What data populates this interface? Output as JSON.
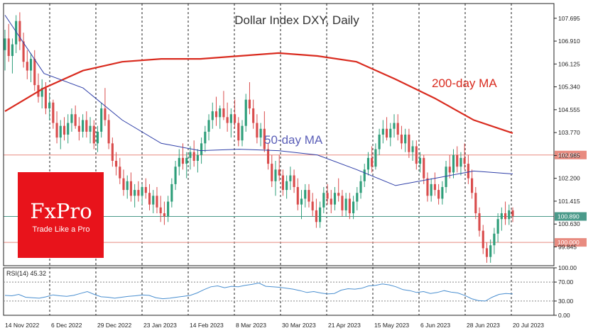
{
  "chart_data": {
    "type": "candlestick",
    "title": "Dollar Index DXY, Daily",
    "main_panel": {
      "y_ticks": [
        "107.695",
        "106.910",
        "106.125",
        "105.340",
        "104.555",
        "103.770",
        "102.985",
        "102.200",
        "101.415",
        "100.630",
        "99.845"
      ],
      "ylim": [
        99.2,
        108.2
      ],
      "x_labels": [
        "14 Nov 2022",
        "6 Dec 2022",
        "29 Dec 2022",
        "23 Jan 2023",
        "14 Feb 2023",
        "8 Mar 2023",
        "30 Mar 2023",
        "21 Apr 2023",
        "15 May 2023",
        "6 Jun 2023",
        "28 Jun 2023",
        "20 Jul 2023"
      ],
      "candles": [
        {
          "o": 106.6,
          "h": 107.3,
          "l": 105.9,
          "c": 107.0
        },
        {
          "o": 107.0,
          "h": 107.5,
          "l": 106.2,
          "c": 106.4
        },
        {
          "o": 106.4,
          "h": 107.0,
          "l": 105.8,
          "c": 106.8
        },
        {
          "o": 106.8,
          "h": 107.8,
          "l": 106.5,
          "c": 107.6
        },
        {
          "o": 107.6,
          "h": 107.9,
          "l": 106.6,
          "c": 106.9
        },
        {
          "o": 106.9,
          "h": 107.2,
          "l": 106.0,
          "c": 106.2
        },
        {
          "o": 106.2,
          "h": 106.6,
          "l": 105.6,
          "c": 105.9
        },
        {
          "o": 105.9,
          "h": 106.5,
          "l": 105.5,
          "c": 106.3
        },
        {
          "o": 106.3,
          "h": 106.6,
          "l": 105.2,
          "c": 105.4
        },
        {
          "o": 105.4,
          "h": 105.8,
          "l": 104.8,
          "c": 105.0
        },
        {
          "o": 105.0,
          "h": 105.6,
          "l": 104.6,
          "c": 105.3
        },
        {
          "o": 105.3,
          "h": 105.5,
          "l": 104.4,
          "c": 104.6
        },
        {
          "o": 104.6,
          "h": 105.1,
          "l": 104.2,
          "c": 104.8
        },
        {
          "o": 104.8,
          "h": 104.9,
          "l": 103.9,
          "c": 104.1
        },
        {
          "o": 104.1,
          "h": 104.5,
          "l": 103.4,
          "c": 103.6
        },
        {
          "o": 103.6,
          "h": 104.2,
          "l": 103.2,
          "c": 104.0
        },
        {
          "o": 104.0,
          "h": 104.3,
          "l": 103.5,
          "c": 103.7
        },
        {
          "o": 103.7,
          "h": 104.4,
          "l": 103.4,
          "c": 104.1
        },
        {
          "o": 104.1,
          "h": 104.6,
          "l": 103.8,
          "c": 104.4
        },
        {
          "o": 104.4,
          "h": 104.7,
          "l": 103.9,
          "c": 104.0
        },
        {
          "o": 104.0,
          "h": 104.3,
          "l": 103.5,
          "c": 103.8
        },
        {
          "o": 103.8,
          "h": 104.4,
          "l": 103.6,
          "c": 104.2
        },
        {
          "o": 104.2,
          "h": 104.5,
          "l": 103.6,
          "c": 103.8
        },
        {
          "o": 103.8,
          "h": 104.3,
          "l": 103.4,
          "c": 104.0
        },
        {
          "o": 104.0,
          "h": 104.2,
          "l": 103.2,
          "c": 103.4
        },
        {
          "o": 103.4,
          "h": 104.0,
          "l": 103.1,
          "c": 103.8
        },
        {
          "o": 103.8,
          "h": 104.8,
          "l": 103.6,
          "c": 104.6
        },
        {
          "o": 104.6,
          "h": 105.3,
          "l": 104.0,
          "c": 104.2
        },
        {
          "o": 104.2,
          "h": 104.4,
          "l": 103.2,
          "c": 103.4
        },
        {
          "o": 103.4,
          "h": 103.6,
          "l": 102.6,
          "c": 102.8
        },
        {
          "o": 102.8,
          "h": 103.1,
          "l": 102.3,
          "c": 102.6
        },
        {
          "o": 102.6,
          "h": 102.9,
          "l": 102.0,
          "c": 102.2
        },
        {
          "o": 102.2,
          "h": 102.5,
          "l": 101.6,
          "c": 101.8
        },
        {
          "o": 101.8,
          "h": 102.3,
          "l": 101.5,
          "c": 102.1
        },
        {
          "o": 102.1,
          "h": 102.4,
          "l": 101.4,
          "c": 101.6
        },
        {
          "o": 101.6,
          "h": 102.0,
          "l": 101.2,
          "c": 101.8
        },
        {
          "o": 101.8,
          "h": 102.1,
          "l": 101.4,
          "c": 101.6
        },
        {
          "o": 101.6,
          "h": 102.0,
          "l": 101.3,
          "c": 101.9
        },
        {
          "o": 101.9,
          "h": 102.2,
          "l": 101.5,
          "c": 101.7
        },
        {
          "o": 101.7,
          "h": 102.0,
          "l": 101.1,
          "c": 101.3
        },
        {
          "o": 101.3,
          "h": 101.8,
          "l": 101.0,
          "c": 101.6
        },
        {
          "o": 101.6,
          "h": 101.9,
          "l": 101.0,
          "c": 101.2
        },
        {
          "o": 101.2,
          "h": 101.6,
          "l": 100.7,
          "c": 101.0
        },
        {
          "o": 101.0,
          "h": 101.4,
          "l": 100.6,
          "c": 100.9
        },
        {
          "o": 100.9,
          "h": 101.6,
          "l": 100.7,
          "c": 101.4
        },
        {
          "o": 101.4,
          "h": 102.2,
          "l": 101.2,
          "c": 102.0
        },
        {
          "o": 102.0,
          "h": 102.8,
          "l": 101.8,
          "c": 102.6
        },
        {
          "o": 102.6,
          "h": 103.2,
          "l": 102.3,
          "c": 102.9
        },
        {
          "o": 102.9,
          "h": 103.4,
          "l": 102.5,
          "c": 102.7
        },
        {
          "o": 102.7,
          "h": 103.1,
          "l": 102.2,
          "c": 102.9
        },
        {
          "o": 102.9,
          "h": 103.3,
          "l": 102.5,
          "c": 103.1
        },
        {
          "o": 103.1,
          "h": 103.5,
          "l": 102.6,
          "c": 102.8
        },
        {
          "o": 102.8,
          "h": 103.2,
          "l": 102.4,
          "c": 103.0
        },
        {
          "o": 103.0,
          "h": 103.6,
          "l": 102.7,
          "c": 103.4
        },
        {
          "o": 103.4,
          "h": 104.0,
          "l": 103.1,
          "c": 103.8
        },
        {
          "o": 103.8,
          "h": 104.4,
          "l": 103.5,
          "c": 104.2
        },
        {
          "o": 104.2,
          "h": 104.8,
          "l": 103.9,
          "c": 104.5
        },
        {
          "o": 104.5,
          "h": 105.0,
          "l": 104.0,
          "c": 104.3
        },
        {
          "o": 104.3,
          "h": 104.7,
          "l": 103.9,
          "c": 104.6
        },
        {
          "o": 104.6,
          "h": 105.2,
          "l": 104.2,
          "c": 104.3
        },
        {
          "o": 104.3,
          "h": 104.8,
          "l": 103.8,
          "c": 104.1
        },
        {
          "o": 104.1,
          "h": 104.6,
          "l": 103.6,
          "c": 104.4
        },
        {
          "o": 104.4,
          "h": 104.9,
          "l": 103.9,
          "c": 104.1
        },
        {
          "o": 104.1,
          "h": 104.3,
          "l": 103.3,
          "c": 103.5
        },
        {
          "o": 103.5,
          "h": 104.2,
          "l": 103.3,
          "c": 104.0
        },
        {
          "o": 104.0,
          "h": 105.1,
          "l": 103.8,
          "c": 104.9
        },
        {
          "o": 104.9,
          "h": 105.5,
          "l": 104.4,
          "c": 104.6
        },
        {
          "o": 104.6,
          "h": 104.9,
          "l": 103.9,
          "c": 104.1
        },
        {
          "o": 104.1,
          "h": 104.4,
          "l": 103.4,
          "c": 103.6
        },
        {
          "o": 103.6,
          "h": 104.1,
          "l": 103.3,
          "c": 103.9
        },
        {
          "o": 103.9,
          "h": 104.5,
          "l": 103.1,
          "c": 103.2
        },
        {
          "o": 103.2,
          "h": 103.4,
          "l": 102.5,
          "c": 102.7
        },
        {
          "o": 102.7,
          "h": 103.0,
          "l": 101.9,
          "c": 102.1
        },
        {
          "o": 102.1,
          "h": 102.8,
          "l": 101.6,
          "c": 102.5
        },
        {
          "o": 102.5,
          "h": 103.0,
          "l": 102.1,
          "c": 102.3
        },
        {
          "o": 102.3,
          "h": 102.5,
          "l": 101.6,
          "c": 101.8
        },
        {
          "o": 101.8,
          "h": 102.3,
          "l": 101.5,
          "c": 102.1
        },
        {
          "o": 102.1,
          "h": 102.6,
          "l": 101.8,
          "c": 102.3
        },
        {
          "o": 102.3,
          "h": 102.5,
          "l": 101.7,
          "c": 101.9
        },
        {
          "o": 101.9,
          "h": 102.2,
          "l": 101.1,
          "c": 101.3
        },
        {
          "o": 101.3,
          "h": 101.8,
          "l": 100.8,
          "c": 101.5
        },
        {
          "o": 101.5,
          "h": 102.0,
          "l": 101.2,
          "c": 101.8
        },
        {
          "o": 101.8,
          "h": 102.0,
          "l": 101.2,
          "c": 101.4
        },
        {
          "o": 101.4,
          "h": 101.7,
          "l": 100.9,
          "c": 101.1
        },
        {
          "o": 101.1,
          "h": 101.5,
          "l": 100.5,
          "c": 100.7
        },
        {
          "o": 100.7,
          "h": 101.4,
          "l": 100.5,
          "c": 101.2
        },
        {
          "o": 101.2,
          "h": 101.9,
          "l": 101.0,
          "c": 101.7
        },
        {
          "o": 101.7,
          "h": 102.0,
          "l": 101.3,
          "c": 101.5
        },
        {
          "o": 101.5,
          "h": 101.8,
          "l": 101.0,
          "c": 101.3
        },
        {
          "o": 101.3,
          "h": 101.9,
          "l": 101.1,
          "c": 101.7
        },
        {
          "o": 101.7,
          "h": 102.2,
          "l": 101.4,
          "c": 101.6
        },
        {
          "o": 101.6,
          "h": 101.8,
          "l": 100.9,
          "c": 101.1
        },
        {
          "o": 101.1,
          "h": 101.7,
          "l": 100.9,
          "c": 101.5
        },
        {
          "o": 101.5,
          "h": 101.7,
          "l": 100.8,
          "c": 101.0
        },
        {
          "o": 101.0,
          "h": 101.6,
          "l": 100.8,
          "c": 101.4
        },
        {
          "o": 101.4,
          "h": 101.9,
          "l": 101.1,
          "c": 101.7
        },
        {
          "o": 101.7,
          "h": 102.3,
          "l": 101.5,
          "c": 102.1
        },
        {
          "o": 102.1,
          "h": 102.7,
          "l": 101.9,
          "c": 102.5
        },
        {
          "o": 102.5,
          "h": 103.1,
          "l": 102.3,
          "c": 102.9
        },
        {
          "o": 102.9,
          "h": 103.3,
          "l": 102.4,
          "c": 102.6
        },
        {
          "o": 102.6,
          "h": 103.4,
          "l": 102.5,
          "c": 103.2
        },
        {
          "o": 103.2,
          "h": 103.9,
          "l": 103.0,
          "c": 103.7
        },
        {
          "o": 103.7,
          "h": 104.2,
          "l": 103.4,
          "c": 103.9
        },
        {
          "o": 103.9,
          "h": 104.3,
          "l": 103.5,
          "c": 103.6
        },
        {
          "o": 103.6,
          "h": 104.1,
          "l": 103.3,
          "c": 103.9
        },
        {
          "o": 103.9,
          "h": 104.4,
          "l": 103.6,
          "c": 104.1
        },
        {
          "o": 104.1,
          "h": 104.4,
          "l": 103.5,
          "c": 103.7
        },
        {
          "o": 103.7,
          "h": 104.0,
          "l": 103.2,
          "c": 103.4
        },
        {
          "o": 103.4,
          "h": 103.9,
          "l": 103.1,
          "c": 103.7
        },
        {
          "o": 103.7,
          "h": 103.9,
          "l": 102.9,
          "c": 103.1
        },
        {
          "o": 103.1,
          "h": 103.5,
          "l": 102.8,
          "c": 103.3
        },
        {
          "o": 103.3,
          "h": 103.5,
          "l": 102.5,
          "c": 102.7
        },
        {
          "o": 102.7,
          "h": 103.1,
          "l": 102.4,
          "c": 102.9
        },
        {
          "o": 102.9,
          "h": 103.0,
          "l": 102.0,
          "c": 102.2
        },
        {
          "o": 102.2,
          "h": 102.4,
          "l": 101.4,
          "c": 101.6
        },
        {
          "o": 101.6,
          "h": 102.2,
          "l": 101.4,
          "c": 102.0
        },
        {
          "o": 102.0,
          "h": 102.4,
          "l": 101.6,
          "c": 101.8
        },
        {
          "o": 101.8,
          "h": 102.0,
          "l": 101.3,
          "c": 101.5
        },
        {
          "o": 101.5,
          "h": 102.1,
          "l": 101.3,
          "c": 101.9
        },
        {
          "o": 101.9,
          "h": 102.8,
          "l": 101.7,
          "c": 102.6
        },
        {
          "o": 102.6,
          "h": 103.0,
          "l": 102.2,
          "c": 102.4
        },
        {
          "o": 102.4,
          "h": 103.2,
          "l": 102.2,
          "c": 103.0
        },
        {
          "o": 103.0,
          "h": 103.3,
          "l": 102.4,
          "c": 102.6
        },
        {
          "o": 102.6,
          "h": 103.1,
          "l": 102.3,
          "c": 102.9
        },
        {
          "o": 102.9,
          "h": 103.4,
          "l": 102.5,
          "c": 102.7
        },
        {
          "o": 102.7,
          "h": 103.0,
          "l": 102.0,
          "c": 102.2
        },
        {
          "o": 102.2,
          "h": 102.5,
          "l": 101.5,
          "c": 101.7
        },
        {
          "o": 101.7,
          "h": 101.9,
          "l": 100.8,
          "c": 101.0
        },
        {
          "o": 101.0,
          "h": 101.2,
          "l": 100.2,
          "c": 100.4
        },
        {
          "o": 100.4,
          "h": 100.6,
          "l": 99.6,
          "c": 99.8
        },
        {
          "o": 99.8,
          "h": 100.0,
          "l": 99.3,
          "c": 99.5
        },
        {
          "o": 99.5,
          "h": 100.1,
          "l": 99.3,
          "c": 99.9
        },
        {
          "o": 99.9,
          "h": 100.5,
          "l": 99.6,
          "c": 100.3
        },
        {
          "o": 100.3,
          "h": 101.0,
          "l": 100.0,
          "c": 100.8
        },
        {
          "o": 100.8,
          "h": 101.2,
          "l": 100.4,
          "c": 101.0
        },
        {
          "o": 101.0,
          "h": 101.4,
          "l": 100.6,
          "c": 100.8
        },
        {
          "o": 100.8,
          "h": 101.3,
          "l": 100.6,
          "c": 101.1
        },
        {
          "o": 101.1,
          "h": 101.2,
          "l": 100.7,
          "c": 100.9
        }
      ],
      "ma200": [
        104.5,
        105.3,
        105.9,
        106.2,
        106.3,
        106.3,
        106.4,
        106.5,
        106.4,
        106.2,
        105.6,
        104.95,
        104.2,
        103.75
      ],
      "ma50": [
        107.8,
        105.8,
        105.3,
        104.2,
        103.4,
        103.15,
        103.2,
        103.15,
        103.0,
        102.5,
        101.95,
        102.2,
        102.45,
        102.35
      ],
      "annotations": [
        {
          "text": "200-day MA",
          "color": "#d92b1f"
        },
        {
          "text": "50-day MA",
          "color": "#5b5fb8"
        }
      ],
      "hlines": [
        {
          "value": 103.0,
          "label": "103.000",
          "color": "#e88b80",
          "bg": "#e88b80",
          "text_color": "#ffffff"
        },
        {
          "value": 100.89,
          "label": "100.890",
          "color": "#4a9a8a",
          "bg": "#4a9a8a",
          "text_color": "#ffffff"
        },
        {
          "value": 100.0,
          "label": "100.000",
          "color": "#e88b80",
          "bg": "#e88b80",
          "text_color": "#ffffff"
        }
      ]
    },
    "rsi_panel": {
      "label": "RSI(14) 45.32",
      "ylim": [
        0,
        100
      ],
      "ticks": [
        "100.00",
        "70.00",
        "30.00",
        "0.00"
      ],
      "levels": [
        70,
        30
      ],
      "values": [
        42,
        41,
        44,
        38,
        37,
        36,
        39,
        43,
        41,
        40,
        42,
        46,
        50,
        44,
        39,
        38,
        36,
        38,
        40,
        41,
        43,
        42,
        37,
        35,
        36,
        38,
        40,
        42,
        47,
        54,
        60,
        62,
        58,
        61,
        60,
        63,
        65,
        68,
        61,
        60,
        59,
        57,
        55,
        52,
        48,
        50,
        47,
        45,
        46,
        53,
        56,
        55,
        57,
        62,
        63,
        66,
        64,
        60,
        54,
        52,
        48,
        50,
        46,
        48,
        52,
        49,
        47,
        42,
        35,
        31,
        30,
        38,
        44,
        46,
        45
      ]
    },
    "colors": {
      "bull": "#2e9e7a",
      "bear": "#d94c4c",
      "ma200": "#d92b1f",
      "ma50": "#2f3fa8",
      "rsi": "#4a8fd0",
      "grid": "#222222"
    }
  },
  "logo": {
    "brand": "FxPro",
    "tagline": "Trade Like a Pro",
    "bg": "#e8131b"
  }
}
